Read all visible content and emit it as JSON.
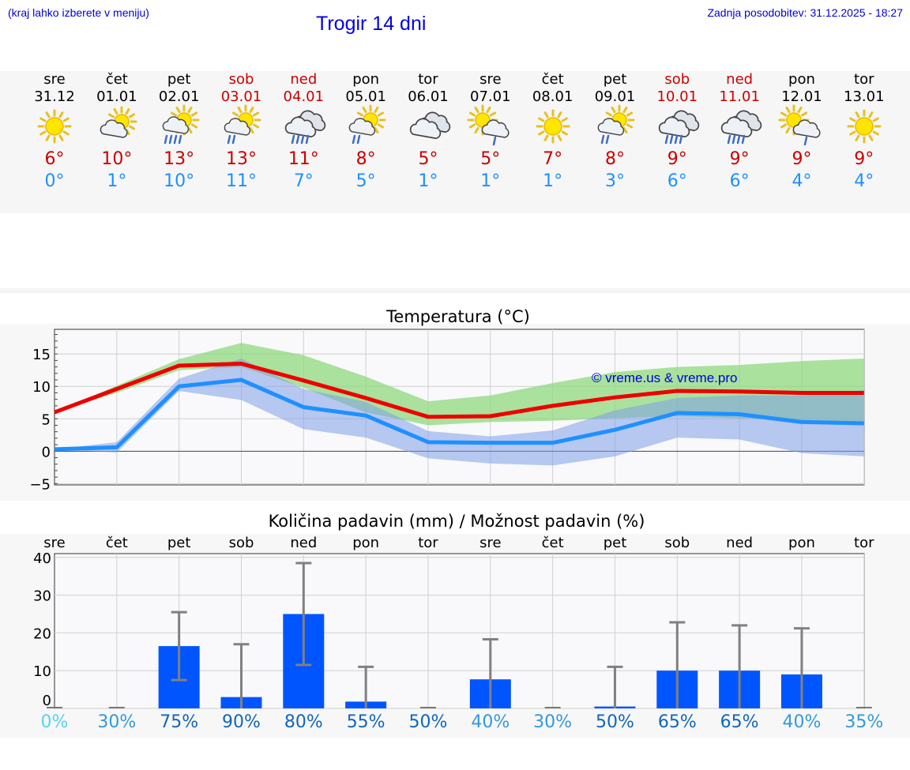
{
  "header": {
    "hint": "(kraj lahko izberete v meniju)",
    "title": "Trogir 14 dni",
    "updated": "Zadnja posodobitev: 31.12.2025 - 18:27"
  },
  "days": [
    {
      "name": "sre",
      "date": "31.12",
      "icon": "sunny-icon",
      "max": "6°",
      "min": "0°",
      "weekend": false
    },
    {
      "name": "čet",
      "date": "01.01",
      "icon": "partly-cloudy-icon",
      "max": "10°",
      "min": "1°",
      "weekend": false
    },
    {
      "name": "pet",
      "date": "02.01",
      "icon": "sun-cloud-rain-icon",
      "max": "13°",
      "min": "10°",
      "weekend": false
    },
    {
      "name": "sob",
      "date": "03.01",
      "icon": "sun-cloud-light-rain-icon",
      "max": "13°",
      "min": "11°",
      "weekend": true
    },
    {
      "name": "ned",
      "date": "04.01",
      "icon": "cloud-rain-icon",
      "max": "11°",
      "min": "7°",
      "weekend": true
    },
    {
      "name": "pon",
      "date": "05.01",
      "icon": "sun-cloud-light-rain-icon",
      "max": "8°",
      "min": "5°",
      "weekend": false
    },
    {
      "name": "tor",
      "date": "06.01",
      "icon": "cloudy-icon",
      "max": "5°",
      "min": "1°",
      "weekend": false
    },
    {
      "name": "sre",
      "date": "07.01",
      "icon": "sun-cloud-drizzle-icon",
      "max": "5°",
      "min": "1°",
      "weekend": false
    },
    {
      "name": "čet",
      "date": "08.01",
      "icon": "sunny-icon",
      "max": "7°",
      "min": "1°",
      "weekend": false
    },
    {
      "name": "pet",
      "date": "09.01",
      "icon": "sun-cloud-light-rain-icon",
      "max": "8°",
      "min": "3°",
      "weekend": false
    },
    {
      "name": "sob",
      "date": "10.01",
      "icon": "cloud-rain-icon",
      "max": "9°",
      "min": "6°",
      "weekend": true
    },
    {
      "name": "ned",
      "date": "11.01",
      "icon": "cloud-rain-icon",
      "max": "9°",
      "min": "6°",
      "weekend": true
    },
    {
      "name": "pon",
      "date": "12.01",
      "icon": "sun-cloud-drizzle-icon",
      "max": "9°",
      "min": "4°",
      "weekend": false
    },
    {
      "name": "tor",
      "date": "13.01",
      "icon": "sunny-icon",
      "max": "9°",
      "min": "4°",
      "weekend": false
    }
  ],
  "colors": {
    "max_line": "#ee0000",
    "min_line": "#1e90ff",
    "max_band": "#8ed87e",
    "min_band": "#7f9fe8",
    "bar": "#0055ff",
    "err": "#808080",
    "weekend": "#cc0000",
    "link": "#0000ee"
  },
  "chart_data": [
    {
      "type": "line",
      "title": "Temperatura (°C)",
      "watermark": "© vreme.us & vreme.pro",
      "ylim": [
        -5.2,
        18.8
      ],
      "yticks": [
        -5,
        0,
        5,
        10,
        15
      ],
      "ytick_labels": [
        "−5",
        "0",
        "5",
        "10",
        "15"
      ],
      "x": [
        0,
        1,
        2,
        3,
        4,
        5,
        6,
        7,
        8,
        9,
        10,
        11,
        12,
        13
      ],
      "series": [
        {
          "name": "max",
          "values": [
            6,
            9.6,
            13.2,
            13.5,
            10.9,
            8.2,
            5.3,
            5.4,
            7,
            8.3,
            9.3,
            9.2,
            9,
            9
          ]
        },
        {
          "name": "min",
          "values": [
            0.3,
            0.6,
            10,
            11,
            6.8,
            5.5,
            1.4,
            1.3,
            1.3,
            3.3,
            5.9,
            5.7,
            4.5,
            4.3
          ]
        }
      ],
      "max_band": {
        "upper": [
          6,
          10.1,
          14.2,
          16.7,
          14.8,
          11.5,
          7.7,
          8.6,
          10.5,
          12.2,
          13,
          13.3,
          13.9,
          14.3
        ],
        "lower": [
          6,
          9,
          12.5,
          13,
          9.8,
          6,
          4,
          4.5,
          4.7,
          5.1,
          5.4,
          5.1,
          4.7,
          4.2
        ]
      },
      "min_band": {
        "upper": [
          0.3,
          1.4,
          11.2,
          14.3,
          9.6,
          7.6,
          3.1,
          2.3,
          3.2,
          6.3,
          8.2,
          8.6,
          8.6,
          9.4
        ],
        "lower": [
          0.3,
          -0.2,
          9.3,
          7.9,
          3.4,
          2.1,
          -1.1,
          -1.9,
          -2.2,
          -0.8,
          2.1,
          1.8,
          -0.3,
          -0.8
        ]
      }
    },
    {
      "type": "bar",
      "title": "Količina padavin (mm) / Možnost padavin (%)",
      "categories": [
        "sre",
        "čet",
        "pet",
        "sob",
        "ned",
        "pon",
        "tor",
        "sre",
        "čet",
        "pet",
        "sob",
        "ned",
        "pon",
        "tor"
      ],
      "values": [
        0,
        0,
        16.5,
        3,
        25,
        1.8,
        0,
        7.7,
        0,
        0.5,
        10,
        10,
        9,
        0
      ],
      "err_high": [
        0,
        0,
        25.5,
        17,
        38.5,
        11,
        0,
        18.3,
        0,
        11,
        22.8,
        22,
        21.2,
        0
      ],
      "err_low": [
        0,
        0,
        7.5,
        0,
        11.5,
        0,
        0,
        0,
        0,
        0,
        0,
        0,
        0,
        0
      ],
      "ylim": [
        0,
        41
      ],
      "yticks": [
        0,
        10,
        20,
        30,
        40
      ],
      "ytick_labels": [
        "0",
        "10",
        "20",
        "30",
        "40"
      ],
      "probabilities": [
        "0%",
        "30%",
        "75%",
        "90%",
        "80%",
        "55%",
        "50%",
        "40%",
        "30%",
        "50%",
        "65%",
        "65%",
        "40%",
        "35%"
      ],
      "probability_colors": [
        "#55d4ee",
        "#3399dd",
        "#1166bb",
        "#1166bb",
        "#1166bb",
        "#1166bb",
        "#1166bb",
        "#3399dd",
        "#3399dd",
        "#1166bb",
        "#1166bb",
        "#1166bb",
        "#3399dd",
        "#3399dd"
      ]
    }
  ]
}
